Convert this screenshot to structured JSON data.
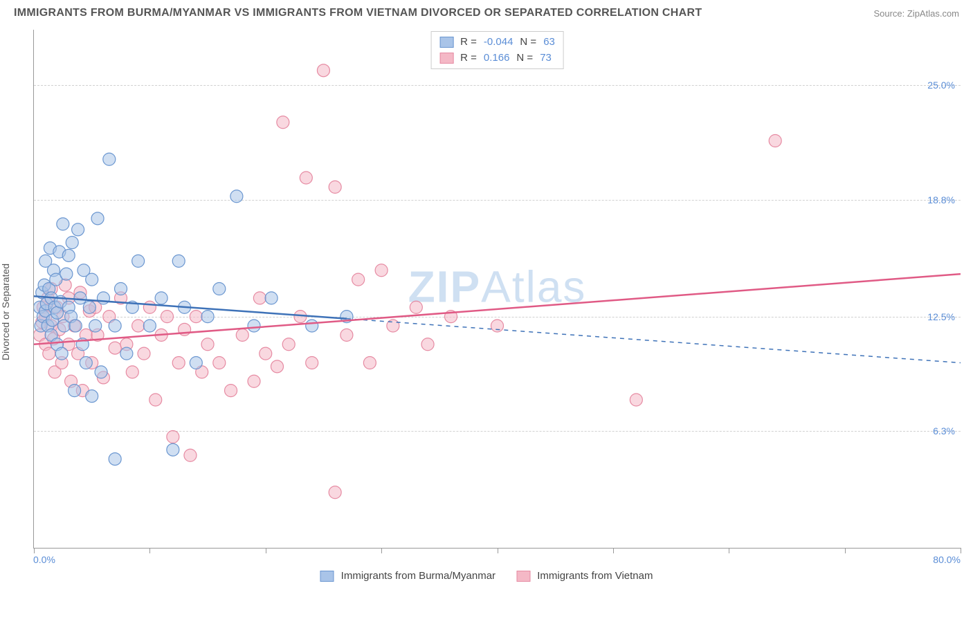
{
  "title": "IMMIGRANTS FROM BURMA/MYANMAR VS IMMIGRANTS FROM VIETNAM DIVORCED OR SEPARATED CORRELATION CHART",
  "source": "Source: ZipAtlas.com",
  "watermark_1": "ZIP",
  "watermark_2": "Atlas",
  "ylabel": "Divorced or Separated",
  "chart": {
    "type": "scatter",
    "xlim": [
      0,
      80
    ],
    "ylim": [
      0,
      28
    ],
    "x_min_label": "0.0%",
    "x_max_label": "80.0%",
    "x_ticks": [
      0,
      10,
      20,
      30,
      40,
      50,
      60,
      70,
      80
    ],
    "y_gridlines": [
      6.3,
      12.5,
      18.8,
      25.0
    ],
    "y_tick_labels": [
      "6.3%",
      "12.5%",
      "18.8%",
      "25.0%"
    ],
    "background_color": "#ffffff",
    "grid_color": "#d0d0d0",
    "axis_color": "#999999",
    "tick_label_color": "#5a8dd6",
    "series": [
      {
        "name": "Immigrants from Burma/Myanmar",
        "fill_color": "#a9c4e8",
        "stroke_color": "#6a96d0",
        "fill_opacity": 0.55,
        "marker_radius": 9,
        "line_color": "#3e72b8",
        "line_width": 2.5,
        "R": "-0.044",
        "N": "63",
        "regression": {
          "x1": 0,
          "y1": 13.6,
          "x2": 80,
          "y2": 10.0,
          "solid_until_x": 27
        },
        "points": [
          [
            0.5,
            13.0
          ],
          [
            0.6,
            12.0
          ],
          [
            0.7,
            13.8
          ],
          [
            0.8,
            12.5
          ],
          [
            0.9,
            14.2
          ],
          [
            1.0,
            12.8
          ],
          [
            1.0,
            15.5
          ],
          [
            1.1,
            13.2
          ],
          [
            1.2,
            12.0
          ],
          [
            1.3,
            14.0
          ],
          [
            1.4,
            16.2
          ],
          [
            1.5,
            11.5
          ],
          [
            1.5,
            13.5
          ],
          [
            1.6,
            12.3
          ],
          [
            1.7,
            15.0
          ],
          [
            1.8,
            13.0
          ],
          [
            1.9,
            14.5
          ],
          [
            2.0,
            12.7
          ],
          [
            2.0,
            11.0
          ],
          [
            2.2,
            16.0
          ],
          [
            2.3,
            13.3
          ],
          [
            2.4,
            10.5
          ],
          [
            2.5,
            17.5
          ],
          [
            2.6,
            12.0
          ],
          [
            2.8,
            14.8
          ],
          [
            3.0,
            13.0
          ],
          [
            3.0,
            15.8
          ],
          [
            3.2,
            12.5
          ],
          [
            3.3,
            16.5
          ],
          [
            3.5,
            8.5
          ],
          [
            3.6,
            12.0
          ],
          [
            3.8,
            17.2
          ],
          [
            4.0,
            13.5
          ],
          [
            4.2,
            11.0
          ],
          [
            4.3,
            15.0
          ],
          [
            4.5,
            10.0
          ],
          [
            4.8,
            13.0
          ],
          [
            5.0,
            8.2
          ],
          [
            5.0,
            14.5
          ],
          [
            5.3,
            12.0
          ],
          [
            5.5,
            17.8
          ],
          [
            5.8,
            9.5
          ],
          [
            6.0,
            13.5
          ],
          [
            6.5,
            21.0
          ],
          [
            7.0,
            12.0
          ],
          [
            7.0,
            4.8
          ],
          [
            7.5,
            14.0
          ],
          [
            8.0,
            10.5
          ],
          [
            8.5,
            13.0
          ],
          [
            9.0,
            15.5
          ],
          [
            10.0,
            12.0
          ],
          [
            11.0,
            13.5
          ],
          [
            12.0,
            5.3
          ],
          [
            12.5,
            15.5
          ],
          [
            13.0,
            13.0
          ],
          [
            14.0,
            10.0
          ],
          [
            15.0,
            12.5
          ],
          [
            16.0,
            14.0
          ],
          [
            17.5,
            19.0
          ],
          [
            19.0,
            12.0
          ],
          [
            20.5,
            13.5
          ],
          [
            24.0,
            12.0
          ],
          [
            27.0,
            12.5
          ]
        ]
      },
      {
        "name": "Immigrants from Vietnam",
        "fill_color": "#f4b8c6",
        "stroke_color": "#e68aa2",
        "fill_opacity": 0.55,
        "marker_radius": 9,
        "line_color": "#e05a85",
        "line_width": 2.5,
        "R": "0.166",
        "N": "73",
        "regression": {
          "x1": 0,
          "y1": 11.0,
          "x2": 80,
          "y2": 14.8,
          "solid_until_x": 80
        },
        "points": [
          [
            0.5,
            11.5
          ],
          [
            0.7,
            12.2
          ],
          [
            0.8,
            13.0
          ],
          [
            1.0,
            11.0
          ],
          [
            1.0,
            12.5
          ],
          [
            1.2,
            13.5
          ],
          [
            1.3,
            10.5
          ],
          [
            1.5,
            12.0
          ],
          [
            1.5,
            14.0
          ],
          [
            1.7,
            11.3
          ],
          [
            1.8,
            9.5
          ],
          [
            2.0,
            13.0
          ],
          [
            2.2,
            11.8
          ],
          [
            2.4,
            10.0
          ],
          [
            2.5,
            12.5
          ],
          [
            2.7,
            14.2
          ],
          [
            3.0,
            11.0
          ],
          [
            3.0,
            13.5
          ],
          [
            3.2,
            9.0
          ],
          [
            3.5,
            12.0
          ],
          [
            3.8,
            10.5
          ],
          [
            4.0,
            13.8
          ],
          [
            4.2,
            8.5
          ],
          [
            4.5,
            11.5
          ],
          [
            4.8,
            12.8
          ],
          [
            5.0,
            10.0
          ],
          [
            5.3,
            13.0
          ],
          [
            5.5,
            11.5
          ],
          [
            6.0,
            9.2
          ],
          [
            6.5,
            12.5
          ],
          [
            7.0,
            10.8
          ],
          [
            7.5,
            13.5
          ],
          [
            8.0,
            11.0
          ],
          [
            8.5,
            9.5
          ],
          [
            9.0,
            12.0
          ],
          [
            9.5,
            10.5
          ],
          [
            10.0,
            13.0
          ],
          [
            10.5,
            8.0
          ],
          [
            11.0,
            11.5
          ],
          [
            11.5,
            12.5
          ],
          [
            12.0,
            6.0
          ],
          [
            12.5,
            10.0
          ],
          [
            13.0,
            11.8
          ],
          [
            13.5,
            5.0
          ],
          [
            14.0,
            12.5
          ],
          [
            14.5,
            9.5
          ],
          [
            15.0,
            11.0
          ],
          [
            16.0,
            10.0
          ],
          [
            17.0,
            8.5
          ],
          [
            18.0,
            11.5
          ],
          [
            19.0,
            9.0
          ],
          [
            19.5,
            13.5
          ],
          [
            20.0,
            10.5
          ],
          [
            21.0,
            9.8
          ],
          [
            22.0,
            11.0
          ],
          [
            21.5,
            23.0
          ],
          [
            23.0,
            12.5
          ],
          [
            23.5,
            20.0
          ],
          [
            24.0,
            10.0
          ],
          [
            25.0,
            25.8
          ],
          [
            26.0,
            19.5
          ],
          [
            27.0,
            11.5
          ],
          [
            28.0,
            14.5
          ],
          [
            29.0,
            10.0
          ],
          [
            30.0,
            15.0
          ],
          [
            31.0,
            12.0
          ],
          [
            33.0,
            13.0
          ],
          [
            34.0,
            11.0
          ],
          [
            26.0,
            3.0
          ],
          [
            36.0,
            12.5
          ],
          [
            52.0,
            8.0
          ],
          [
            64.0,
            22.0
          ],
          [
            40.0,
            12.0
          ]
        ]
      }
    ]
  },
  "legend_top": {
    "r_label": "R =",
    "n_label": "N ="
  },
  "legend_bottom": {
    "series1": "Immigrants from Burma/Myanmar",
    "series2": "Immigrants from Vietnam"
  }
}
